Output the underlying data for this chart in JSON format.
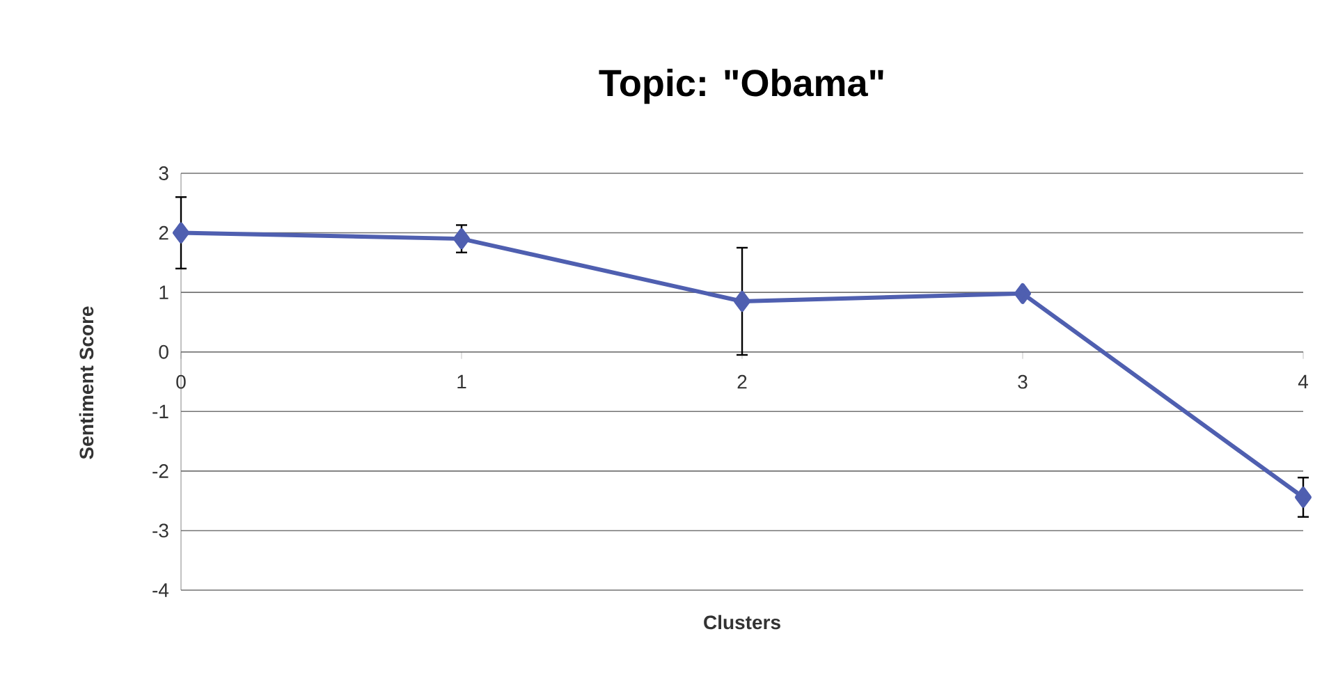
{
  "chart_data": {
    "type": "line",
    "title": "Topic: \"Obama\"",
    "xlabel": "Clusters",
    "ylabel": "Sentiment Score",
    "categories": [
      "0",
      "1",
      "2",
      "3",
      "4"
    ],
    "series": [
      {
        "color": "#4f5fb0",
        "values": [
          2.0,
          1.9,
          0.85,
          0.98,
          -2.44
        ],
        "errors": [
          0.6,
          0.23,
          0.9,
          null,
          0.33
        ]
      }
    ],
    "ylim": [
      -4,
      3
    ],
    "yticks": [
      -4,
      -3,
      -2,
      -1,
      0,
      1,
      2,
      3
    ],
    "grid": "y",
    "marker": "diamond",
    "line_style": "solid"
  }
}
